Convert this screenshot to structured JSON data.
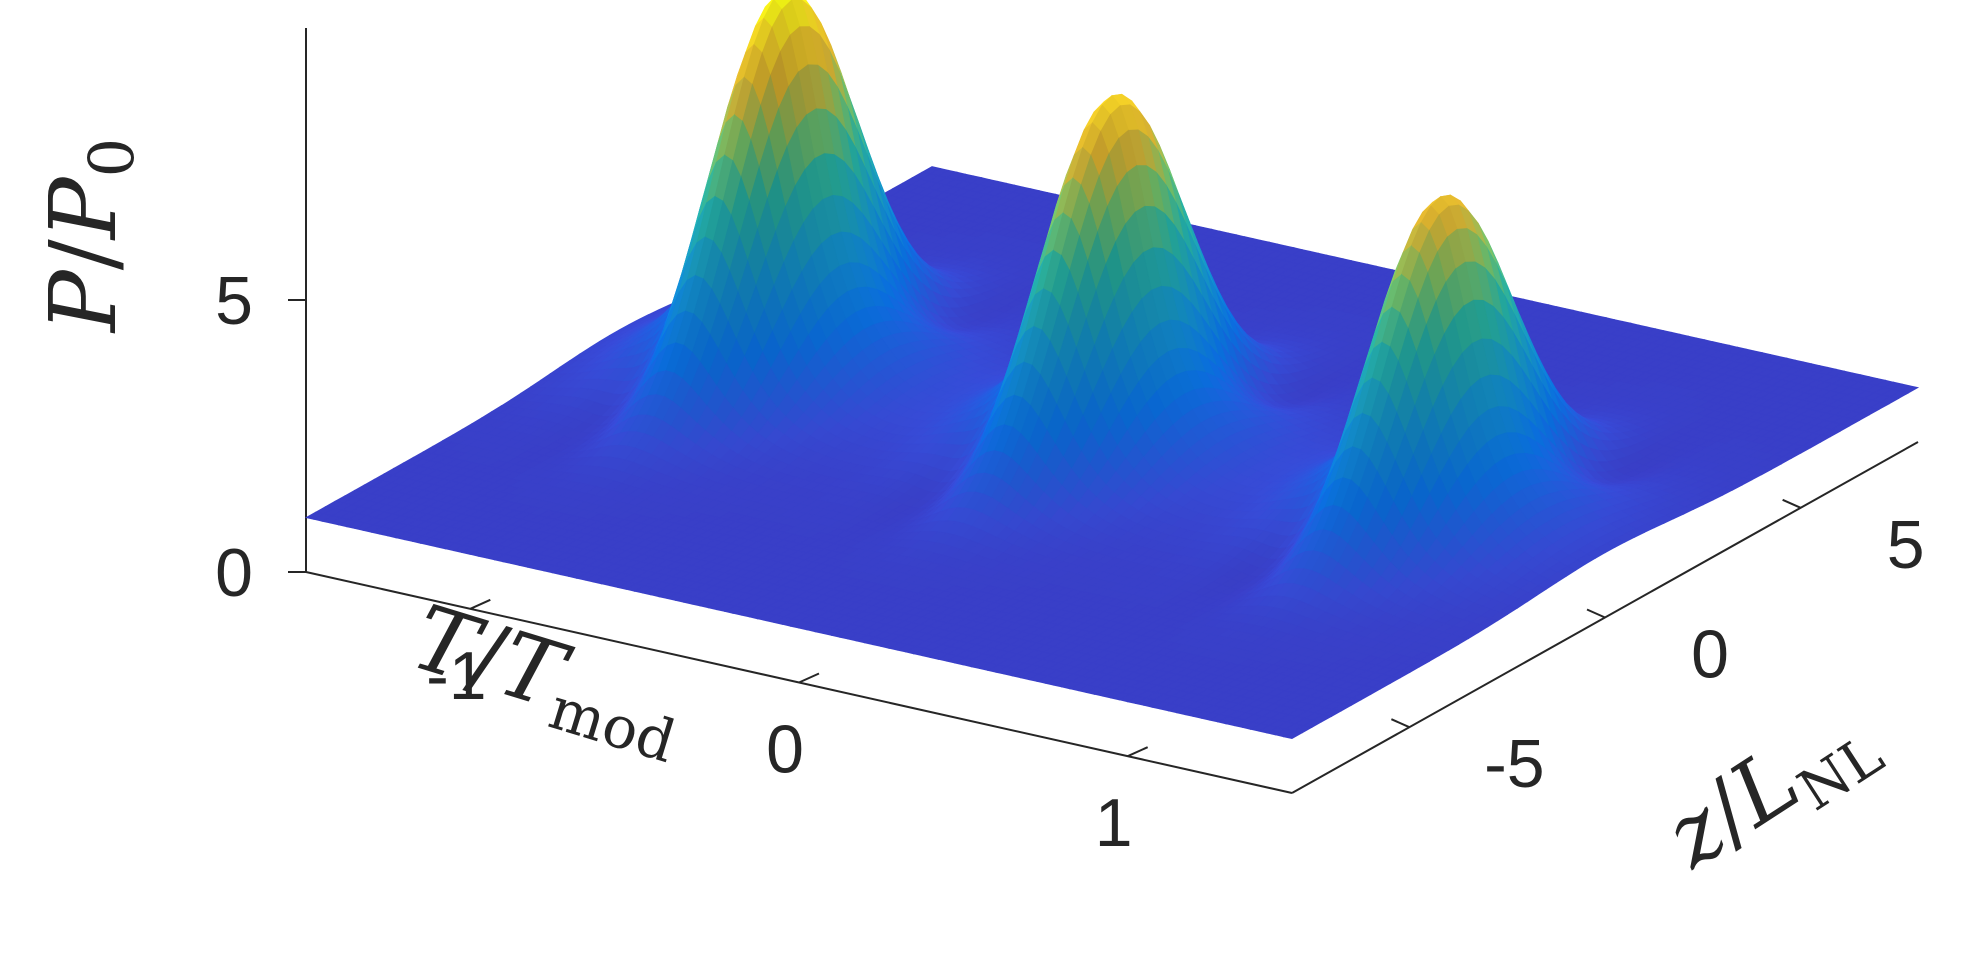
{
  "chart_data": {
    "type": "surface",
    "xlabel": {
      "main": "T",
      "sep": "/",
      "denom": "T",
      "sub": "mod"
    },
    "ylabel": {
      "main": "z",
      "sep": "/",
      "denom": "L",
      "sub": "NL"
    },
    "zlabel": {
      "main": "P",
      "sep": "/",
      "denom": "P",
      "sub": "0"
    },
    "x_ticks": [
      "-1",
      "0",
      "1"
    ],
    "y_ticks": [
      "-5",
      "0",
      "5"
    ],
    "z_ticks": [
      "0",
      "5"
    ],
    "xlim": [
      -1.5,
      1.5
    ],
    "ylim": [
      -8,
      8
    ],
    "zlim": [
      0,
      10
    ],
    "peaks": [
      {
        "T": -1,
        "z": 0,
        "P": 8.2
      },
      {
        "T": 0,
        "z": 0,
        "P": 7.6
      },
      {
        "T": 1,
        "z": 0,
        "P": 7.1
      }
    ],
    "background_level": 1,
    "colormap": "parula",
    "colors": {
      "low": "#3e26a8",
      "mid": "#1aa8d0",
      "high": "#f9fb15",
      "base": "#0f5ba8"
    }
  }
}
